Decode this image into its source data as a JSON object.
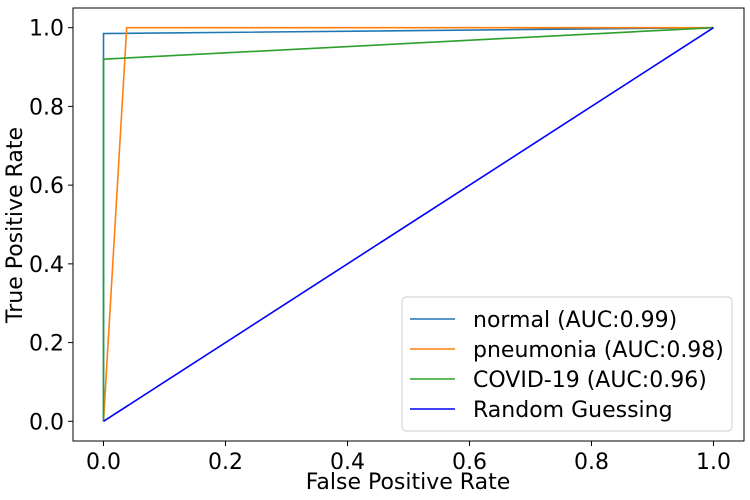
{
  "chart_data": {
    "type": "line",
    "xlabel": "False Positive Rate",
    "ylabel": "True Positive Rate",
    "xlim": [
      -0.05,
      1.05
    ],
    "ylim": [
      -0.05,
      1.05
    ],
    "xticks": [
      0.0,
      0.2,
      0.4,
      0.6,
      0.8,
      1.0
    ],
    "yticks": [
      0.0,
      0.2,
      0.4,
      0.6,
      0.8,
      1.0
    ],
    "xtick_labels": [
      "0.0",
      "0.2",
      "0.4",
      "0.6",
      "0.8",
      "1.0"
    ],
    "ytick_labels": [
      "0.0",
      "0.2",
      "0.4",
      "0.6",
      "0.8",
      "1.0"
    ],
    "grid": false,
    "legend_position": "lower-right",
    "series": [
      {
        "name": "normal (AUC:0.99)",
        "color": "#1f77b4",
        "x": [
          0.0,
          0.0,
          1.0
        ],
        "y": [
          0.0,
          0.985,
          1.0
        ]
      },
      {
        "name": "pneumonia (AUC:0.98)",
        "color": "#ff7f0e",
        "x": [
          0.0,
          0.038,
          1.0
        ],
        "y": [
          0.0,
          1.0,
          1.0
        ]
      },
      {
        "name": "COVID-19 (AUC:0.96)",
        "color": "#2ca02c",
        "x": [
          0.0,
          0.0,
          1.0
        ],
        "y": [
          0.0,
          0.92,
          1.0
        ]
      },
      {
        "name": "Random Guessing",
        "color": "#0000ff",
        "x": [
          0.0,
          1.0
        ],
        "y": [
          0.0,
          1.0
        ]
      }
    ]
  }
}
